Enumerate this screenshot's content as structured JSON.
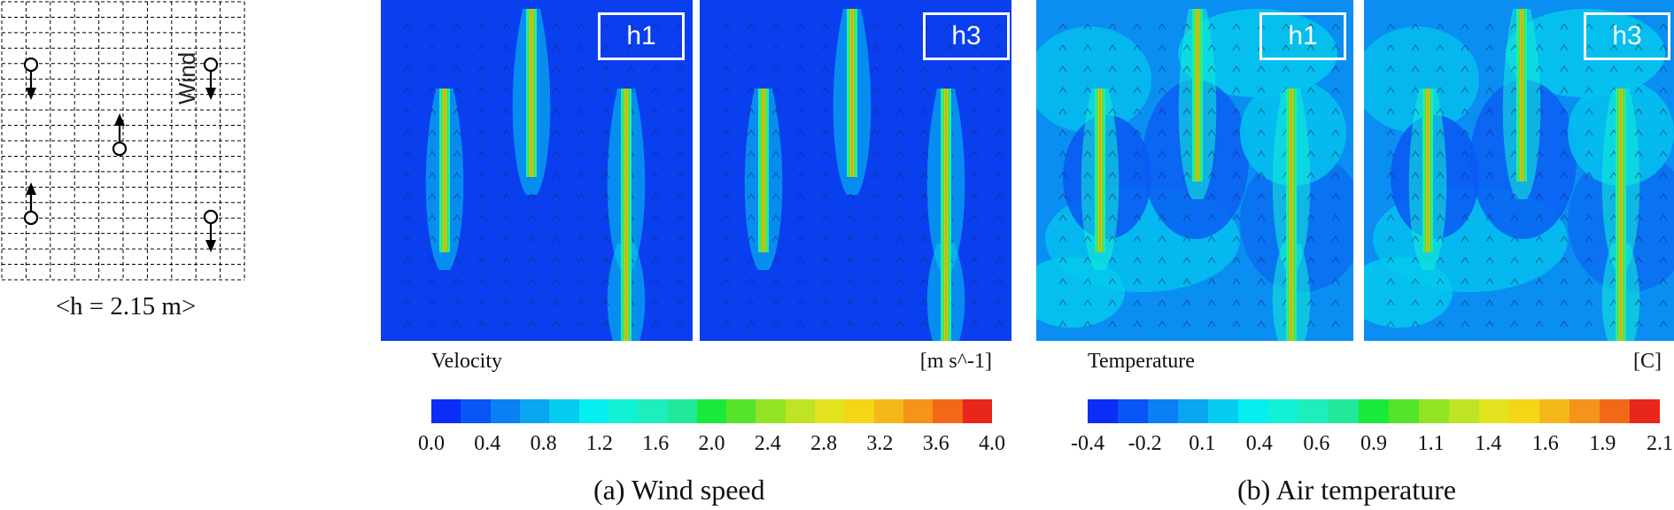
{
  "layout_diagram": {
    "wind_label": "Wind",
    "height_label": "<h = 2.15 m>"
  },
  "panels": [
    {
      "tag": "h1"
    },
    {
      "tag": "h3"
    },
    {
      "tag": "h1"
    },
    {
      "tag": "h3"
    }
  ],
  "wind_speed": {
    "variable_label": "Velocity",
    "unit_label": "[m s^-1]",
    "ticks": [
      "0.0",
      "0.4",
      "0.8",
      "1.2",
      "1.6",
      "2.0",
      "2.4",
      "2.8",
      "3.2",
      "3.6",
      "4.0"
    ],
    "caption": "(a)  Wind speed"
  },
  "air_temperature": {
    "variable_label": "Temperature",
    "unit_label": "[C]",
    "ticks": [
      "-0.4",
      "-0.2",
      "0.1",
      "0.4",
      "0.6",
      "0.9",
      "1.1",
      "1.4",
      "1.6",
      "1.9",
      "2.1"
    ],
    "caption": "(b)  Air temperature"
  },
  "colors": {
    "low": "#0a3ff0",
    "scale": [
      "#0a2ef5",
      "#0a55f5",
      "#0a80f3",
      "#0aa6f2",
      "#05cdef",
      "#05eef0",
      "#12f0d6",
      "#1eeebb",
      "#22e89c",
      "#19ea39",
      "#55e42a",
      "#92e425",
      "#bfe325",
      "#e2e21e",
      "#f4d617",
      "#f5b81b",
      "#f5931b",
      "#f36817",
      "#e8261b"
    ]
  }
}
